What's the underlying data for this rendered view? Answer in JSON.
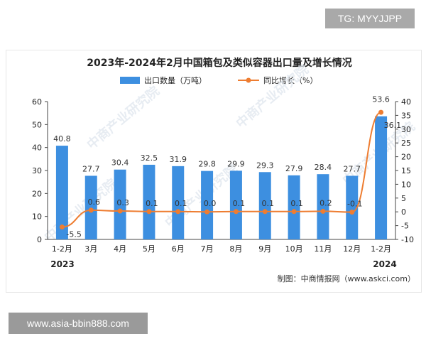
{
  "header_badge": "TG: MYYJJPP",
  "footer_badge": "www.asia-bbin888.com",
  "chart_data": {
    "type": "bar",
    "title": "2023年-2024年2月中国箱包及类似容器出口量及增长情况",
    "categories": [
      "1-2月",
      "3月",
      "4月",
      "5月",
      "6月",
      "7月",
      "8月",
      "9月",
      "10月",
      "11月",
      "12月",
      "1-2月"
    ],
    "year_labels": {
      "start": "2023",
      "end": "2024"
    },
    "series": [
      {
        "name": "出口数量（万吨）",
        "kind": "bar",
        "axis": "left",
        "color": "#3d8fe0",
        "values": [
          40.8,
          27.7,
          30.4,
          32.5,
          31.9,
          29.8,
          29.9,
          29.3,
          27.9,
          28.4,
          27.7,
          53.6
        ],
        "labels": [
          "40.8",
          "27.7",
          "30.4",
          "32.5",
          "31.9",
          "29.8",
          "29.9",
          "29.3",
          "27.9",
          "28.4",
          "27.7",
          "53.6"
        ]
      },
      {
        "name": "同比增长（%）",
        "kind": "line",
        "axis": "right",
        "color": "#ee7d31",
        "values": [
          -5.5,
          0.6,
          0.3,
          0.1,
          0.1,
          0.0,
          0.1,
          0.1,
          0.1,
          0.2,
          -0.1,
          36.1
        ],
        "labels": [
          "-5.5",
          "0.6",
          "0.3",
          "0.1",
          "0.1",
          "0.0",
          "0.1",
          "0.1",
          "0.1",
          "0.2",
          "-0.1",
          "36.1"
        ]
      }
    ],
    "ylim_left": [
      0,
      60
    ],
    "yticks_left": [
      0,
      10,
      20,
      30,
      40,
      50,
      60
    ],
    "ylim_right": [
      -10,
      40
    ],
    "yticks_right": [
      -10,
      -5,
      0,
      5,
      10,
      15,
      20,
      25,
      30,
      35,
      40
    ],
    "legend_position": "top-center",
    "grid": false,
    "source": "制图：中商情报网（www.askci.com）",
    "watermark": "中商产业研究院"
  }
}
